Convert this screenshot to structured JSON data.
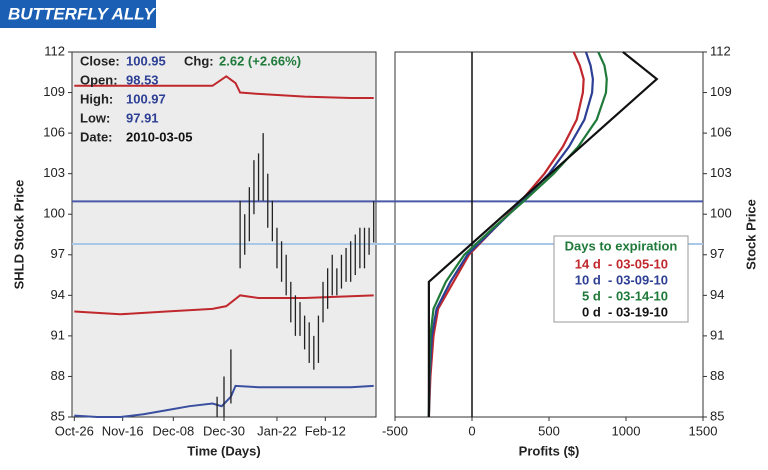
{
  "header": {
    "title": "BUTTERFLY ALLY"
  },
  "chart_data": [
    {
      "type": "line",
      "x_label": "Time (Days)",
      "y_label": "SHLD Stock Price",
      "xlim": [
        -1,
        131
      ],
      "ylim": [
        85,
        112
      ],
      "xticks": [
        {
          "value": 0,
          "label": "Oct-26"
        },
        {
          "value": 21,
          "label": "Nov-16"
        },
        {
          "value": 43,
          "label": "Dec-08"
        },
        {
          "value": 65,
          "label": "Dec-30"
        },
        {
          "value": 88,
          "label": "Jan-22"
        },
        {
          "value": 109,
          "label": "Feb-12"
        }
      ],
      "yticks": [
        85,
        88,
        91,
        94,
        97,
        100,
        103,
        106,
        109,
        112
      ],
      "info": [
        {
          "label": "Close:",
          "value": "100.95",
          "color": "#2d3f94"
        },
        {
          "label": "Chg:",
          "value": "2.62 (+2.66%)",
          "color": "#1f7a3a"
        },
        {
          "label": "Open:",
          "value": "98.53",
          "color": "#2d3f94"
        },
        {
          "label": "High:",
          "value": "100.97",
          "color": "#2d3f94"
        },
        {
          "label": "Low:",
          "value": "97.91",
          "color": "#2d3f94"
        },
        {
          "label": "Date:",
          "value": "2010-03-05",
          "color": "#111111"
        }
      ],
      "series": [
        {
          "color": "#c0282d",
          "x": [
            0,
            30,
            60,
            66,
            70,
            72,
            80,
            100,
            120,
            130
          ],
          "values": [
            109.5,
            109.5,
            109.5,
            110.2,
            109.7,
            109.0,
            108.9,
            108.7,
            108.6,
            108.6
          ]
        },
        {
          "color": "#c0282d",
          "x": [
            0,
            20,
            40,
            60,
            66,
            72,
            80,
            100,
            130
          ],
          "values": [
            92.8,
            92.6,
            92.8,
            93.0,
            93.2,
            94.0,
            93.8,
            93.8,
            94.0
          ]
        },
        {
          "color": "#3a4fa0",
          "x": [
            0,
            10,
            20,
            30,
            40,
            50,
            60,
            64,
            68,
            70,
            80,
            100,
            120,
            130
          ],
          "values": [
            85.1,
            85.0,
            85.0,
            85.2,
            85.5,
            85.8,
            86.0,
            85.8,
            86.5,
            87.3,
            87.2,
            87.2,
            87.2,
            87.3
          ]
        }
      ],
      "ranges": {
        "color": "#222222",
        "x": [
          62,
          65,
          68,
          72,
          74,
          76,
          78,
          80,
          82,
          84,
          86,
          88,
          90,
          92,
          94,
          96,
          98,
          100,
          102,
          104,
          106,
          108,
          110,
          112,
          114,
          116,
          118,
          120,
          122,
          124,
          126,
          128,
          130
        ],
        "low": [
          85,
          85,
          86,
          96,
          97,
          98,
          100,
          101,
          101,
          99,
          98,
          96,
          95,
          94,
          92,
          91,
          91,
          90,
          89,
          88.5,
          89,
          92,
          93,
          94,
          94,
          94.5,
          95,
          95,
          95.5,
          96,
          96,
          97,
          97.91
        ],
        "high": [
          86.5,
          88,
          90,
          101,
          100,
          102,
          104,
          104.5,
          106,
          103,
          101,
          99,
          98,
          97,
          95,
          94,
          93.5,
          92.5,
          92,
          91,
          92.5,
          95,
          96,
          97,
          96,
          97,
          97.5,
          98,
          98.5,
          99,
          99,
          99,
          100.97
        ]
      },
      "hlines": [
        {
          "value": 100.95,
          "color": "#4a5aa8"
        },
        {
          "value": 97.8,
          "color": "#a9c8e8"
        }
      ]
    },
    {
      "type": "line",
      "x_label": "Profits ($)",
      "y_label": "Stock Price",
      "xlim": [
        -500,
        1500
      ],
      "ylim": [
        85,
        112
      ],
      "xticks": [
        -500,
        0,
        500,
        1000,
        1500
      ],
      "yticks": [
        85,
        88,
        91,
        94,
        97,
        100,
        103,
        106,
        109,
        112
      ],
      "legend_title": "Days to expiration",
      "legend_title_color": "#1f7a3a",
      "series": [
        {
          "name": "14 d  - 03-05-10",
          "color": "#c0282d",
          "y": [
            85,
            88,
            91,
            93,
            95,
            97,
            99,
            101,
            103,
            105,
            107,
            109,
            110,
            111,
            112
          ],
          "values": [
            -280,
            -270,
            -250,
            -220,
            -120,
            -20,
            150,
            320,
            470,
            590,
            680,
            720,
            725,
            700,
            660
          ]
        },
        {
          "name": "10 d  - 03-09-10",
          "color": "#2d3f94",
          "y": [
            85,
            88,
            91,
            93,
            95,
            97,
            99,
            101,
            103,
            105,
            107,
            109,
            110,
            111,
            112
          ],
          "values": [
            -280,
            -275,
            -260,
            -230,
            -140,
            -30,
            150,
            330,
            500,
            630,
            730,
            780,
            785,
            770,
            740
          ]
        },
        {
          "name": "5 d  - 03-14-10",
          "color": "#1f7a3a",
          "y": [
            85,
            88,
            91,
            93,
            95,
            97,
            99,
            101,
            103,
            105,
            107,
            109,
            110,
            111,
            112
          ],
          "values": [
            -280,
            -278,
            -270,
            -250,
            -170,
            -50,
            140,
            340,
            530,
            690,
            810,
            870,
            875,
            860,
            820
          ]
        },
        {
          "name": "0 d  - 03-19-10",
          "color": "#111111",
          "y": [
            85,
            95,
            110,
            112
          ],
          "values": [
            -280,
            -280,
            1200,
            980
          ]
        }
      ]
    }
  ]
}
